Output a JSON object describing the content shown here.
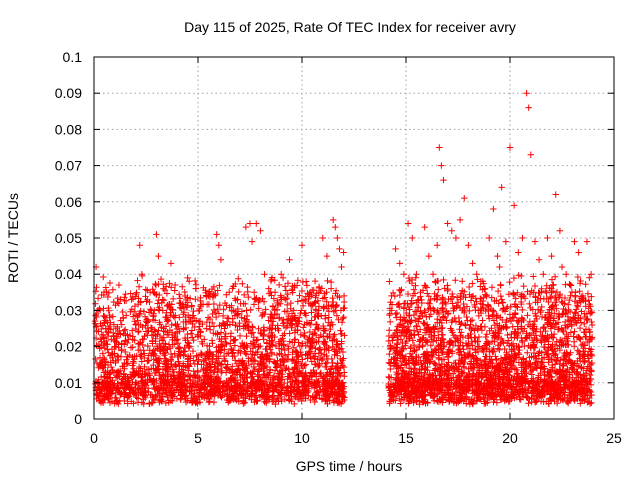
{
  "chart_data": {
    "type": "scatter",
    "title": "Day 115 of 2025, Rate Of TEC Index for receiver avry",
    "xlabel": "GPS time / hours",
    "ylabel": "ROTI / TECUs",
    "xlim": [
      0,
      25
    ],
    "ylim": [
      0,
      0.1
    ],
    "x_ticks": [
      "0",
      "5",
      "10",
      "15",
      "20",
      "25"
    ],
    "y_ticks": [
      "0",
      "0.01",
      "0.02",
      "0.03",
      "0.04",
      "0.05",
      "0.06",
      "0.07",
      "0.08",
      "0.09",
      "0.1"
    ],
    "grid": true,
    "marker": "plus",
    "color": "#ff0000",
    "series": [
      {
        "x": [
          0.1,
          0.2,
          0.3,
          0.5,
          0.7,
          0.9,
          1.0,
          1.2,
          1.4,
          1.6,
          1.8,
          2.0,
          2.2,
          2.3,
          2.5,
          2.7,
          2.9,
          3.0,
          3.1,
          3.3,
          3.5,
          3.7,
          3.9,
          4.1,
          4.3,
          4.5,
          4.7,
          4.9,
          5.1,
          5.3,
          5.5,
          5.7,
          5.9,
          6.0,
          6.1,
          6.3,
          6.5,
          6.7,
          6.9,
          7.1,
          7.3,
          7.5,
          7.6,
          7.7,
          7.8,
          8.0,
          8.2,
          8.4,
          8.6,
          8.8,
          9.0,
          9.2,
          9.4,
          9.6,
          9.8,
          10.0,
          10.2,
          10.4,
          10.6,
          10.8,
          11.0,
          11.2,
          11.4,
          11.5,
          11.6,
          11.7,
          11.8,
          11.9,
          12.0,
          14.2,
          14.3,
          14.5,
          14.7,
          14.9,
          15.1,
          15.3,
          15.5,
          15.7,
          15.9,
          16.1,
          16.3,
          16.5,
          16.6,
          16.7,
          16.8,
          17.0,
          17.2,
          17.4,
          17.6,
          17.8,
          18.0,
          18.2,
          18.4,
          18.6,
          18.8,
          19.0,
          19.2,
          19.4,
          19.5,
          19.6,
          19.8,
          20.0,
          20.2,
          20.4,
          20.6,
          20.8,
          20.9,
          21.0,
          21.2,
          21.4,
          21.6,
          21.8,
          22.0,
          22.2,
          22.4,
          22.5,
          22.7,
          22.9,
          23.1,
          23.3,
          23.5,
          23.7,
          23.9
        ],
        "y": [
          0.042,
          0.03,
          0.022,
          0.015,
          0.024,
          0.018,
          0.02,
          0.037,
          0.028,
          0.021,
          0.033,
          0.026,
          0.048,
          0.04,
          0.027,
          0.035,
          0.03,
          0.051,
          0.045,
          0.033,
          0.028,
          0.043,
          0.037,
          0.032,
          0.025,
          0.039,
          0.031,
          0.036,
          0.027,
          0.022,
          0.034,
          0.029,
          0.051,
          0.048,
          0.044,
          0.032,
          0.035,
          0.03,
          0.033,
          0.028,
          0.053,
          0.054,
          0.049,
          0.035,
          0.054,
          0.052,
          0.04,
          0.036,
          0.031,
          0.029,
          0.04,
          0.033,
          0.044,
          0.03,
          0.027,
          0.048,
          0.038,
          0.035,
          0.032,
          0.03,
          0.05,
          0.045,
          0.036,
          0.055,
          0.053,
          0.05,
          0.047,
          0.042,
          0.046,
          0.038,
          0.034,
          0.047,
          0.043,
          0.04,
          0.054,
          0.05,
          0.04,
          0.035,
          0.053,
          0.045,
          0.04,
          0.048,
          0.075,
          0.07,
          0.066,
          0.054,
          0.052,
          0.05,
          0.055,
          0.061,
          0.048,
          0.043,
          0.04,
          0.038,
          0.036,
          0.05,
          0.058,
          0.045,
          0.042,
          0.064,
          0.049,
          0.075,
          0.059,
          0.046,
          0.05,
          0.09,
          0.086,
          0.073,
          0.049,
          0.044,
          0.04,
          0.05,
          0.045,
          0.062,
          0.052,
          0.042,
          0.04,
          0.037,
          0.049,
          0.046,
          0.034,
          0.049,
          0.04
        ]
      }
    ]
  }
}
